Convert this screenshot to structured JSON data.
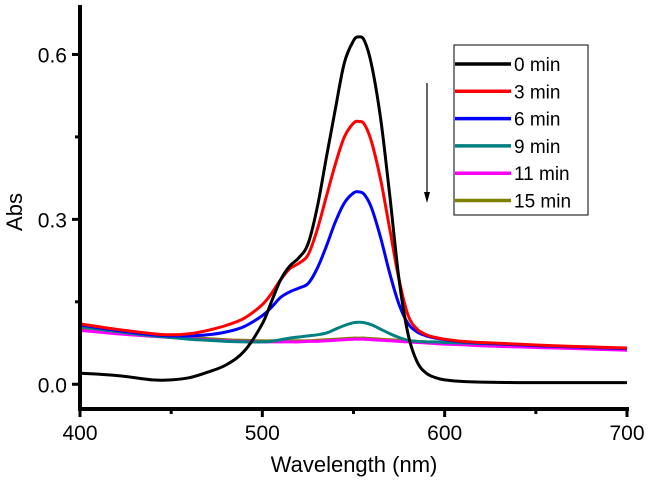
{
  "chart_data": {
    "type": "line",
    "title": "",
    "xlabel": "Wavelength (nm)",
    "ylabel": "Abs",
    "xlim": [
      400,
      700
    ],
    "ylim": [
      -0.045,
      0.69
    ],
    "xticks": [
      400,
      500,
      600,
      700
    ],
    "xtick_labels": [
      "400",
      "500",
      "600",
      "700"
    ],
    "x_minor_ticks": [
      450,
      550,
      650
    ],
    "yticks": [
      0.0,
      0.3,
      0.6
    ],
    "ytick_labels": [
      "0.0",
      "0.3",
      "0.6"
    ],
    "y_minor_ticks": [
      0.15,
      0.45
    ],
    "grid": false,
    "legend_position": "top-right",
    "annotation": "downward arrow indicating decreasing absorbance with time",
    "x": [
      400,
      420,
      440,
      450,
      460,
      470,
      480,
      490,
      500,
      505,
      510,
      515,
      520,
      525,
      530,
      535,
      540,
      545,
      550,
      553,
      556,
      560,
      565,
      570,
      575,
      580,
      585,
      590,
      595,
      600,
      610,
      620,
      640,
      660,
      680,
      700
    ],
    "series": [
      {
        "name": "0 min",
        "color": "#000000",
        "values": [
          0.02,
          0.016,
          0.008,
          0.008,
          0.012,
          0.022,
          0.035,
          0.06,
          0.11,
          0.15,
          0.19,
          0.215,
          0.23,
          0.255,
          0.32,
          0.41,
          0.5,
          0.585,
          0.625,
          0.632,
          0.625,
          0.58,
          0.48,
          0.34,
          0.19,
          0.09,
          0.04,
          0.02,
          0.012,
          0.008,
          0.005,
          0.004,
          0.003,
          0.003,
          0.003,
          0.003
        ]
      },
      {
        "name": "3 min",
        "color": "#ff0000",
        "values": [
          0.11,
          0.1,
          0.092,
          0.09,
          0.092,
          0.098,
          0.107,
          0.12,
          0.145,
          0.165,
          0.19,
          0.21,
          0.22,
          0.235,
          0.28,
          0.34,
          0.4,
          0.45,
          0.475,
          0.478,
          0.473,
          0.44,
          0.37,
          0.28,
          0.19,
          0.125,
          0.1,
          0.09,
          0.085,
          0.082,
          0.078,
          0.076,
          0.073,
          0.07,
          0.068,
          0.066
        ]
      },
      {
        "name": "6 min",
        "color": "#0000ff",
        "values": [
          0.108,
          0.098,
          0.09,
          0.088,
          0.088,
          0.09,
          0.095,
          0.105,
          0.125,
          0.14,
          0.158,
          0.168,
          0.175,
          0.183,
          0.21,
          0.25,
          0.295,
          0.33,
          0.348,
          0.35,
          0.345,
          0.32,
          0.265,
          0.2,
          0.145,
          0.11,
          0.095,
          0.088,
          0.084,
          0.081,
          0.077,
          0.075,
          0.072,
          0.069,
          0.067,
          0.065
        ]
      },
      {
        "name": "9 min",
        "color": "#008080",
        "values": [
          0.105,
          0.096,
          0.088,
          0.085,
          0.082,
          0.08,
          0.078,
          0.077,
          0.077,
          0.078,
          0.081,
          0.084,
          0.086,
          0.088,
          0.09,
          0.093,
          0.1,
          0.107,
          0.112,
          0.113,
          0.112,
          0.108,
          0.1,
          0.092,
          0.085,
          0.08,
          0.078,
          0.077,
          0.077,
          0.076,
          0.075,
          0.074,
          0.072,
          0.069,
          0.067,
          0.065
        ]
      },
      {
        "name": "11 min",
        "color": "#ff00ff",
        "values": [
          0.098,
          0.092,
          0.087,
          0.085,
          0.083,
          0.081,
          0.079,
          0.078,
          0.077,
          0.077,
          0.077,
          0.077,
          0.077,
          0.078,
          0.078,
          0.079,
          0.08,
          0.081,
          0.082,
          0.082,
          0.082,
          0.081,
          0.08,
          0.079,
          0.078,
          0.077,
          0.076,
          0.075,
          0.074,
          0.073,
          0.072,
          0.07,
          0.068,
          0.066,
          0.064,
          0.062
        ]
      },
      {
        "name": "15 min",
        "color": "#808000",
        "values": [
          0.103,
          0.095,
          0.089,
          0.087,
          0.085,
          0.083,
          0.081,
          0.08,
          0.079,
          0.079,
          0.079,
          0.079,
          0.079,
          0.079,
          0.08,
          0.081,
          0.082,
          0.083,
          0.084,
          0.084,
          0.084,
          0.083,
          0.082,
          0.081,
          0.08,
          0.079,
          0.078,
          0.077,
          0.076,
          0.075,
          0.074,
          0.072,
          0.07,
          0.068,
          0.066,
          0.065
        ]
      }
    ]
  }
}
